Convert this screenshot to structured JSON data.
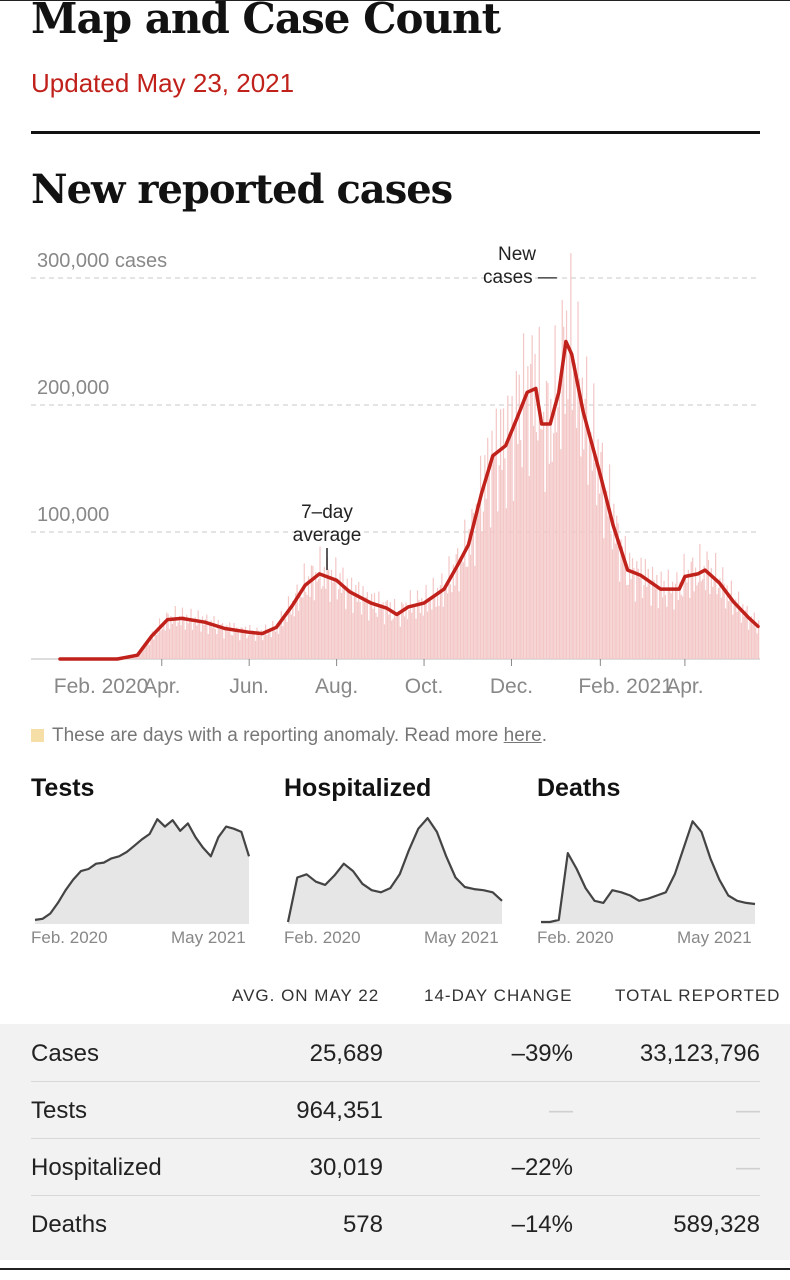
{
  "header": {
    "title": "Map and Case Count",
    "updated": "Updated May 23, 2021"
  },
  "section_title": "New reported cases",
  "annotations": {
    "new_cases": [
      "New",
      "cases —"
    ],
    "avg": [
      "7–day",
      "average"
    ]
  },
  "legend": {
    "text": "These are days with a reporting anomaly. Read more ",
    "link": "here",
    "end": "."
  },
  "colors": {
    "accent_red": "#c0211b",
    "bar_pink": "#f4c7c7",
    "anomaly_yellow": "#f6dfa6",
    "mini_fill": "#e6e6e6",
    "mini_line": "#444444"
  },
  "chart_data": [
    {
      "type": "bar",
      "title": "New reported cases",
      "ylabel": "cases",
      "ylim": [
        0,
        300000
      ],
      "yticks": [
        {
          "value": 300000,
          "label": "300,000 cases"
        },
        {
          "value": 200000,
          "label": "200,000"
        },
        {
          "value": 100000,
          "label": "100,000"
        }
      ],
      "xticks": [
        {
          "date": "2020-02-01",
          "label": "Feb. 2020"
        },
        {
          "date": "2020-04-01",
          "label": "Apr."
        },
        {
          "date": "2020-06-01",
          "label": "Jun."
        },
        {
          "date": "2020-08-01",
          "label": "Aug."
        },
        {
          "date": "2020-10-01",
          "label": "Oct."
        },
        {
          "date": "2020-12-01",
          "label": "Dec."
        },
        {
          "date": "2021-02-01",
          "label": "Feb. 2021"
        },
        {
          "date": "2021-04-01",
          "label": "Apr."
        }
      ],
      "x_range": [
        "2020-01-21",
        "2021-05-22"
      ],
      "series": [
        {
          "name": "7–day average",
          "points": [
            [
              "2020-01-21",
              0
            ],
            [
              "2020-03-01",
              0
            ],
            [
              "2020-03-15",
              3000
            ],
            [
              "2020-03-25",
              18000
            ],
            [
              "2020-04-05",
              31000
            ],
            [
              "2020-04-15",
              32000
            ],
            [
              "2020-05-01",
              29000
            ],
            [
              "2020-05-15",
              24000
            ],
            [
              "2020-06-01",
              21000
            ],
            [
              "2020-06-10",
              20000
            ],
            [
              "2020-06-20",
              25000
            ],
            [
              "2020-07-01",
              42000
            ],
            [
              "2020-07-10",
              58000
            ],
            [
              "2020-07-20",
              67000
            ],
            [
              "2020-08-01",
              62000
            ],
            [
              "2020-08-10",
              53000
            ],
            [
              "2020-08-25",
              44000
            ],
            [
              "2020-09-05",
              40000
            ],
            [
              "2020-09-12",
              35000
            ],
            [
              "2020-09-20",
              41000
            ],
            [
              "2020-10-01",
              44000
            ],
            [
              "2020-10-15",
              55000
            ],
            [
              "2020-10-25",
              75000
            ],
            [
              "2020-11-01",
              90000
            ],
            [
              "2020-11-10",
              130000
            ],
            [
              "2020-11-18",
              160000
            ],
            [
              "2020-11-27",
              168000
            ],
            [
              "2020-12-05",
              190000
            ],
            [
              "2020-12-12",
              210000
            ],
            [
              "2020-12-18",
              213000
            ],
            [
              "2020-12-22",
              185000
            ],
            [
              "2020-12-28",
              185000
            ],
            [
              "2021-01-03",
              210000
            ],
            [
              "2021-01-08",
              250000
            ],
            [
              "2021-01-12",
              240000
            ],
            [
              "2021-01-20",
              195000
            ],
            [
              "2021-02-01",
              145000
            ],
            [
              "2021-02-10",
              105000
            ],
            [
              "2021-02-20",
              70000
            ],
            [
              "2021-03-01",
              66000
            ],
            [
              "2021-03-15",
              55000
            ],
            [
              "2021-03-28",
              55000
            ],
            [
              "2021-04-01",
              65000
            ],
            [
              "2021-04-10",
              67000
            ],
            [
              "2021-04-15",
              70000
            ],
            [
              "2021-04-25",
              60000
            ],
            [
              "2021-05-05",
              45000
            ],
            [
              "2021-05-15",
              33000
            ],
            [
              "2021-05-22",
              25689
            ]
          ]
        }
      ]
    },
    {
      "type": "area",
      "title": "Tests",
      "xlabels": [
        "Feb. 2020",
        "May 2021"
      ],
      "values": [
        0.02,
        0.03,
        0.08,
        0.18,
        0.3,
        0.4,
        0.48,
        0.5,
        0.55,
        0.56,
        0.6,
        0.62,
        0.66,
        0.72,
        0.78,
        0.83,
        0.97,
        0.9,
        0.96,
        0.86,
        0.93,
        0.8,
        0.7,
        0.62,
        0.8,
        0.9,
        0.88,
        0.85,
        0.62
      ]
    },
    {
      "type": "area",
      "title": "Hospitalized",
      "xlabels": [
        "Feb. 2020",
        "May 2021"
      ],
      "values": [
        0.0,
        0.42,
        0.45,
        0.38,
        0.35,
        0.44,
        0.55,
        0.48,
        0.36,
        0.3,
        0.28,
        0.32,
        0.45,
        0.68,
        0.88,
        0.98,
        0.85,
        0.62,
        0.42,
        0.33,
        0.31,
        0.3,
        0.28,
        0.2
      ]
    },
    {
      "type": "area",
      "title": "Deaths",
      "xlabels": [
        "Feb. 2020",
        "May 2021"
      ],
      "values": [
        0.0,
        0.0,
        0.02,
        0.65,
        0.5,
        0.32,
        0.2,
        0.18,
        0.3,
        0.28,
        0.25,
        0.2,
        0.22,
        0.25,
        0.28,
        0.45,
        0.7,
        0.95,
        0.85,
        0.6,
        0.4,
        0.25,
        0.2,
        0.18,
        0.17
      ]
    }
  ],
  "table": {
    "headers": [
      "AVG. ON MAY 22",
      "14-DAY CHANGE",
      "TOTAL REPORTED"
    ],
    "rows": [
      {
        "name": "Cases",
        "avg": "25,689",
        "change": "–39%",
        "total": "33,123,796"
      },
      {
        "name": "Tests",
        "avg": "964,351",
        "change": "—",
        "total": "—"
      },
      {
        "name": "Hospitalized",
        "avg": "30,019",
        "change": "–22%",
        "total": "—"
      },
      {
        "name": "Deaths",
        "avg": "578",
        "change": "–14%",
        "total": "589,328"
      }
    ]
  }
}
